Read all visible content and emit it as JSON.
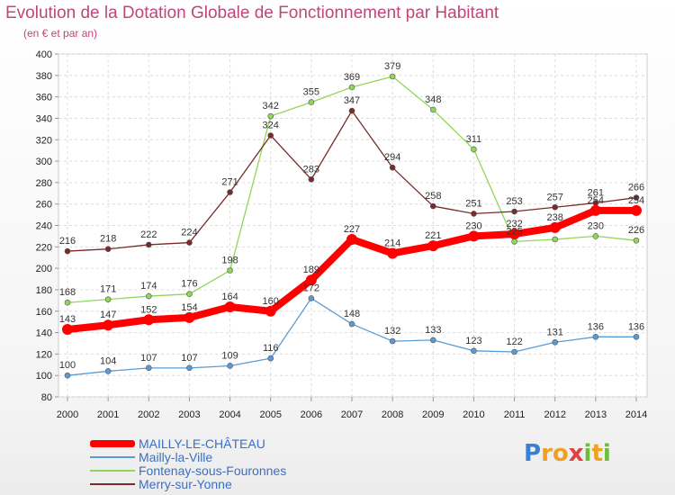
{
  "chart_data": {
    "type": "line",
    "title": "Evolution de la Dotation Globale de Fonctionnement par Habitant",
    "subtitle": "(en € et par an)",
    "x": [
      "2000",
      "2001",
      "2002",
      "2003",
      "2004",
      "2005",
      "2006",
      "2007",
      "2008",
      "2009",
      "2010",
      "2011",
      "2012",
      "2013",
      "2014"
    ],
    "ylim": [
      80,
      400
    ],
    "yticks": [
      "80",
      "100",
      "120",
      "140",
      "160",
      "180",
      "200",
      "220",
      "240",
      "260",
      "280",
      "300",
      "320",
      "340",
      "360",
      "380",
      "400"
    ],
    "grid": true,
    "legend_position": "bottom-left",
    "series": [
      {
        "name": "MAILLY-LE-CHÂTEAU",
        "color": "#ff0000",
        "values": [
          143,
          147,
          152,
          154,
          164,
          160,
          189,
          227,
          214,
          221,
          230,
          232,
          238,
          254,
          254
        ],
        "labels": [
          "143",
          "147",
          "152",
          "154",
          "164",
          "160",
          "189",
          "227",
          "214",
          "221",
          "230",
          "232",
          "238",
          "254",
          "254"
        ]
      },
      {
        "name": "Mailly-la-Ville",
        "color": "#5b9bd5",
        "values": [
          100,
          104,
          107,
          107,
          109,
          116,
          172,
          148,
          132,
          133,
          123,
          122,
          131,
          136,
          136
        ],
        "labels": [
          "100",
          "104",
          "107",
          "107",
          "109",
          "116",
          "172",
          "148",
          "132",
          "133",
          "123",
          "122",
          "131",
          "136",
          "136"
        ]
      },
      {
        "name": "Fontenay-sous-Fouronnes",
        "color": "#8fd65a",
        "values": [
          168,
          171,
          174,
          176,
          198,
          342,
          355,
          369,
          379,
          348,
          311,
          225,
          227,
          230,
          226
        ],
        "labels": [
          "168",
          "171",
          "174",
          "176",
          "198",
          "342",
          "355",
          "369",
          "379",
          "348",
          "311",
          "225",
          "",
          "230",
          "226"
        ]
      },
      {
        "name": "Merry-sur-Yonne",
        "color": "#7a2a2a",
        "values": [
          216,
          218,
          222,
          224,
          271,
          324,
          283,
          347,
          294,
          258,
          251,
          253,
          257,
          261,
          266
        ],
        "labels": [
          "216",
          "218",
          "222",
          "224",
          "271",
          "324",
          "283",
          "347",
          "294",
          "258",
          "251",
          "253",
          "257",
          "261",
          "266"
        ]
      }
    ]
  },
  "logo": {
    "text": "Proxiti",
    "letters": [
      "P",
      "r",
      "o",
      "x",
      "i",
      "t",
      "i"
    ]
  }
}
